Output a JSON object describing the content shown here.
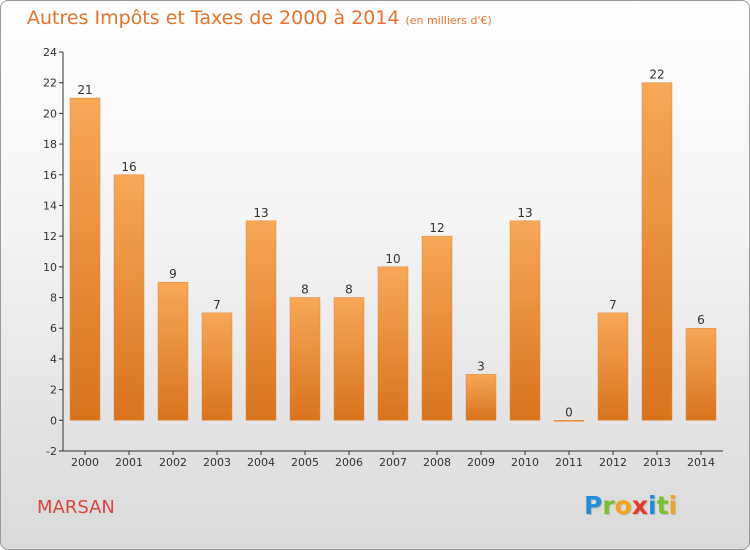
{
  "title": "Autres Impôts et Taxes de 2000 à 2014",
  "subtitle": "(en milliers d'€)",
  "town": "MARSAN",
  "logo": {
    "text": "Proxiti",
    "letters": [
      {
        "ch": "P",
        "color": "#1f8fd6"
      },
      {
        "ch": "r",
        "color": "#7cbf2b"
      },
      {
        "ch": "o",
        "color": "#f2a41c"
      },
      {
        "ch": "x",
        "color": "#e23b2a"
      },
      {
        "ch": "i",
        "color": "#1f8fd6"
      },
      {
        "ch": "t",
        "color": "#7cbf2b"
      },
      {
        "ch": "i",
        "color": "#f2a41c"
      }
    ]
  },
  "colors": {
    "title": "#e8732a",
    "bar_light": "#f7a857",
    "bar_dark": "#d9731c",
    "town": "#d9463e"
  },
  "chart_data": {
    "type": "bar",
    "title": "Autres Impôts et Taxes de 2000 à 2014",
    "subtitle": "(en milliers d'€)",
    "categories": [
      "2000",
      "2001",
      "2002",
      "2003",
      "2004",
      "2005",
      "2006",
      "2007",
      "2008",
      "2009",
      "2010",
      "2011",
      "2012",
      "2013",
      "2014"
    ],
    "values": [
      21,
      16,
      9,
      7,
      13,
      8,
      8,
      10,
      12,
      3,
      13,
      0,
      7,
      22,
      6
    ],
    "ylim": [
      -2,
      24
    ],
    "yticks": [
      -2,
      0,
      2,
      4,
      6,
      8,
      10,
      12,
      14,
      16,
      18,
      20,
      22,
      24
    ],
    "grid": false,
    "data_labels": true
  }
}
